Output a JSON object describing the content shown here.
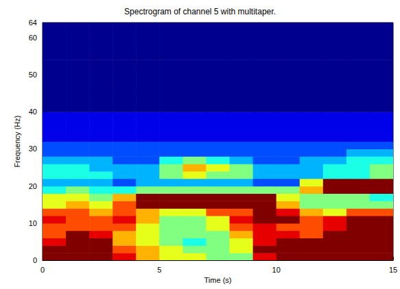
{
  "chart_data": {
    "type": "heatmap",
    "title": "Spectrogram of channel 5 with multitaper.",
    "x_label": "Time (s)",
    "y_label": "Frequency (Hz)",
    "x": [
      0.5,
      1.5,
      2.5,
      3.5,
      4.5,
      5.5,
      6.5,
      7.5,
      8.5,
      9.5,
      10.5,
      11.5,
      12.5,
      13.5,
      14.5
    ],
    "y": [
      1,
      3,
      5,
      7,
      9,
      11,
      13,
      15,
      17,
      19,
      21,
      23,
      25,
      27,
      29,
      31,
      33,
      35,
      37,
      39,
      41,
      43,
      45,
      47,
      49,
      51,
      53,
      55,
      57,
      59,
      61,
      63
    ],
    "values": [
      [
        10,
        10,
        10,
        9,
        7,
        6,
        6,
        5,
        5,
        9,
        10,
        10,
        10,
        10,
        10
      ],
      [
        10,
        10,
        10,
        8,
        7,
        6,
        5,
        5,
        6,
        10,
        10,
        10,
        10,
        10,
        10
      ],
      [
        9,
        10,
        10,
        7,
        6,
        5,
        4,
        5,
        6,
        9,
        10,
        10,
        10,
        10,
        10
      ],
      [
        8,
        10,
        9,
        7,
        6,
        5,
        5,
        5,
        7,
        9,
        9,
        8,
        10,
        10,
        10
      ],
      [
        8,
        8,
        8,
        8,
        6,
        5,
        5,
        6,
        8,
        9,
        8,
        8,
        9,
        10,
        10
      ],
      [
        9,
        8,
        8,
        9,
        7,
        5,
        5,
        6,
        9,
        10,
        10,
        8,
        9,
        10,
        10
      ],
      [
        8,
        8,
        7,
        8,
        7,
        6,
        6,
        8,
        8,
        10,
        9,
        7,
        6,
        8,
        8
      ],
      [
        6,
        7,
        6,
        8,
        10,
        10,
        10,
        10,
        10,
        10,
        7,
        5,
        5,
        5,
        5
      ],
      [
        6,
        6,
        5,
        7,
        10,
        10,
        10,
        10,
        10,
        10,
        6,
        5,
        5,
        5,
        4
      ],
      [
        4,
        5,
        4,
        4,
        5,
        5,
        5,
        5,
        5,
        5,
        5,
        7,
        10,
        10,
        10
      ],
      [
        3,
        3,
        3,
        2,
        3,
        3,
        3,
        3,
        3,
        2,
        2,
        6,
        10,
        10,
        10
      ],
      [
        4,
        4,
        4,
        3,
        3,
        5,
        6,
        5,
        5,
        3,
        3,
        3,
        4,
        4,
        5
      ],
      [
        4,
        4,
        3,
        3,
        3,
        5,
        7,
        6,
        5,
        3,
        3,
        3,
        4,
        4,
        5
      ],
      [
        3,
        3,
        3,
        2,
        2,
        4,
        5,
        4,
        3,
        2,
        2,
        3,
        3,
        4,
        4
      ],
      [
        2,
        2,
        2,
        2,
        2,
        2,
        2,
        2,
        2,
        2,
        2,
        2,
        2,
        3,
        3
      ],
      [
        2,
        2,
        2,
        2,
        2,
        2,
        2,
        2,
        2,
        2,
        2,
        2,
        2,
        2,
        2
      ],
      [
        1,
        1,
        1,
        1,
        1,
        1,
        1,
        1,
        1,
        1,
        1,
        1,
        1,
        1,
        1
      ],
      [
        1,
        1,
        1,
        1,
        1,
        1,
        1,
        1,
        1,
        1,
        1,
        1,
        1,
        1,
        1
      ],
      [
        1,
        1,
        1,
        1,
        1,
        1,
        1,
        1,
        1,
        1,
        1,
        1,
        1,
        1,
        1
      ],
      [
        1,
        1,
        1,
        1,
        1,
        1,
        1,
        1,
        1,
        1,
        1,
        1,
        1,
        1,
        1
      ],
      [
        0,
        0,
        0,
        0,
        0,
        0,
        0,
        0,
        0,
        0,
        0,
        0,
        0,
        0,
        0
      ],
      [
        0,
        0,
        0,
        0,
        0,
        0,
        0,
        0,
        0,
        0,
        0,
        0,
        0,
        0,
        0
      ],
      [
        0,
        0,
        0,
        0,
        0,
        0,
        0,
        0,
        0,
        0,
        0,
        0,
        0,
        0,
        0
      ],
      [
        0,
        0,
        0,
        0,
        0,
        0,
        0,
        0,
        0,
        0,
        0,
        0,
        0,
        0,
        0
      ],
      [
        0,
        0,
        0,
        0,
        0,
        0,
        0,
        0,
        0,
        0,
        0,
        0,
        0,
        0,
        0
      ],
      [
        0,
        0,
        0,
        0,
        0,
        0,
        0,
        0,
        0,
        0,
        0,
        0,
        0,
        0,
        0
      ],
      [
        0,
        0,
        0,
        0,
        0,
        0,
        0,
        0,
        0,
        0,
        0,
        0,
        0,
        0,
        0
      ],
      [
        0,
        0,
        0,
        0,
        0,
        0,
        0,
        0,
        0,
        0,
        0,
        0,
        0,
        0,
        0
      ],
      [
        0,
        0,
        0,
        0,
        0,
        0,
        0,
        0,
        0,
        0,
        0,
        0,
        0,
        0,
        0
      ],
      [
        0,
        0,
        0,
        0,
        0,
        0,
        0,
        0,
        0,
        0,
        0,
        0,
        0,
        0,
        0
      ],
      [
        0,
        0,
        0,
        0,
        0,
        0,
        0,
        0,
        0,
        0,
        0,
        0,
        0,
        0,
        0
      ],
      [
        0,
        0,
        0,
        0,
        0,
        0,
        0,
        0,
        0,
        0,
        0,
        0,
        0,
        0,
        0
      ]
    ],
    "zlim": [
      0,
      10
    ],
    "xlim": [
      0,
      15
    ],
    "xticks": [
      0,
      5,
      10,
      15
    ],
    "ylim": [
      0,
      64
    ],
    "yticks": [
      0,
      10,
      20,
      30,
      40,
      50,
      60
    ]
  }
}
